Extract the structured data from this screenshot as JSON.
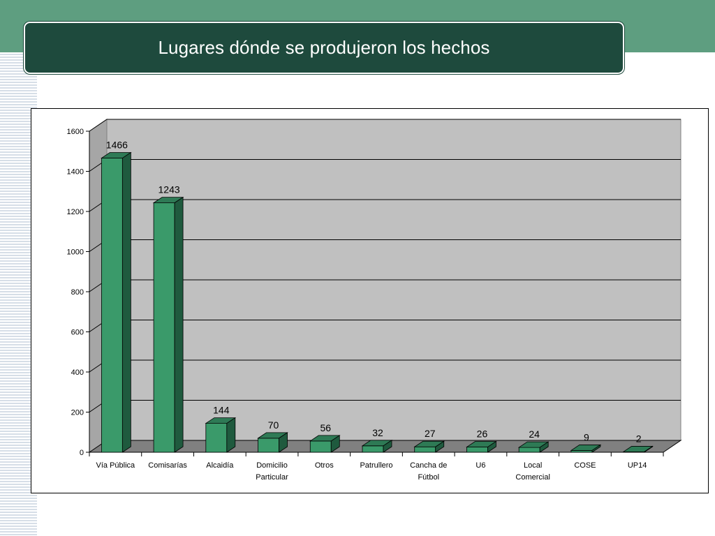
{
  "slide": {
    "title": "Lugares dónde se produjeron los hechos"
  },
  "colors": {
    "band": "#5e9e80",
    "title_bg": "#1e4a3d",
    "bar_front": "#3a9a6a",
    "bar_side": "#1f5a3e",
    "bar_top": "#2e7a55",
    "plot_bg": "#c0c0c0",
    "floor": "#808080"
  },
  "chart_data": {
    "type": "bar",
    "title": "",
    "xlabel": "",
    "ylabel": "",
    "ylim": [
      0,
      1600
    ],
    "yticks": [
      0,
      200,
      400,
      600,
      800,
      1000,
      1200,
      1400,
      1600
    ],
    "grid": true,
    "legend": "none",
    "categories": [
      [
        "Vía Pública"
      ],
      [
        "Comisarías"
      ],
      [
        "Alcaidía"
      ],
      [
        "Domicilio",
        "Particular"
      ],
      [
        "Otros"
      ],
      [
        "Patrullero"
      ],
      [
        "Cancha de",
        "Fútbol"
      ],
      [
        "U6"
      ],
      [
        "Local",
        "Comercial"
      ],
      [
        "COSE"
      ],
      [
        "UP14"
      ]
    ],
    "values": [
      1466,
      1243,
      144,
      70,
      56,
      32,
      27,
      26,
      24,
      9,
      2
    ]
  }
}
